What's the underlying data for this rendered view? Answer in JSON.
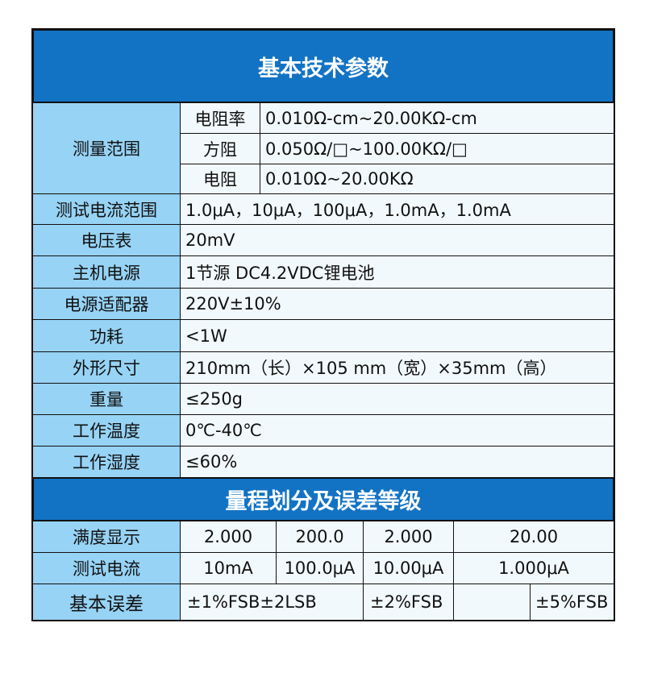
{
  "title": "基本技术参数",
  "measure_range": {
    "label": "测量范围",
    "rows": [
      {
        "name": "电阻率",
        "value": "0.010Ω-cm~20.00KΩ-cm"
      },
      {
        "name": "方阻",
        "value": "0.050Ω/□~100.00KΩ/□"
      },
      {
        "name": "电阻",
        "value": "0.010Ω~20.00KΩ"
      }
    ]
  },
  "specs": [
    {
      "label": "测试电流范围",
      "value": "1.0μA，10μA，100μA，1.0mA，1.0mA"
    },
    {
      "label": "电压表",
      "value": "20mV"
    },
    {
      "label": "主机电源",
      "value": "1节源 DC4.2VDC锂电池"
    },
    {
      "label": "电源适配器",
      "value": "220V±10%"
    },
    {
      "label": "功耗",
      "value": "<1W"
    },
    {
      "label": "外形尺寸",
      "value": "210mm（长）×105 mm（宽）×35mm（高）"
    },
    {
      "label": "重量",
      "value": "≤250g"
    },
    {
      "label": "工作温度",
      "value": "0℃-40℃"
    },
    {
      "label": "工作湿度",
      "value": "≤60%"
    }
  ],
  "range_title": "量程划分及误差等级",
  "full_scale": {
    "label": "满度显示",
    "values": [
      "2.000",
      "200.0",
      "2.000",
      "20.00"
    ]
  },
  "test_current": {
    "label": "测试电流",
    "values": [
      "10mA",
      "100.0μA",
      "10.00μA",
      "1.000μA"
    ]
  },
  "basic_error": {
    "label": "基本误差",
    "values": [
      "±1%FSB±2LSB",
      "±2%FSB",
      "",
      "±5%FSB"
    ]
  }
}
